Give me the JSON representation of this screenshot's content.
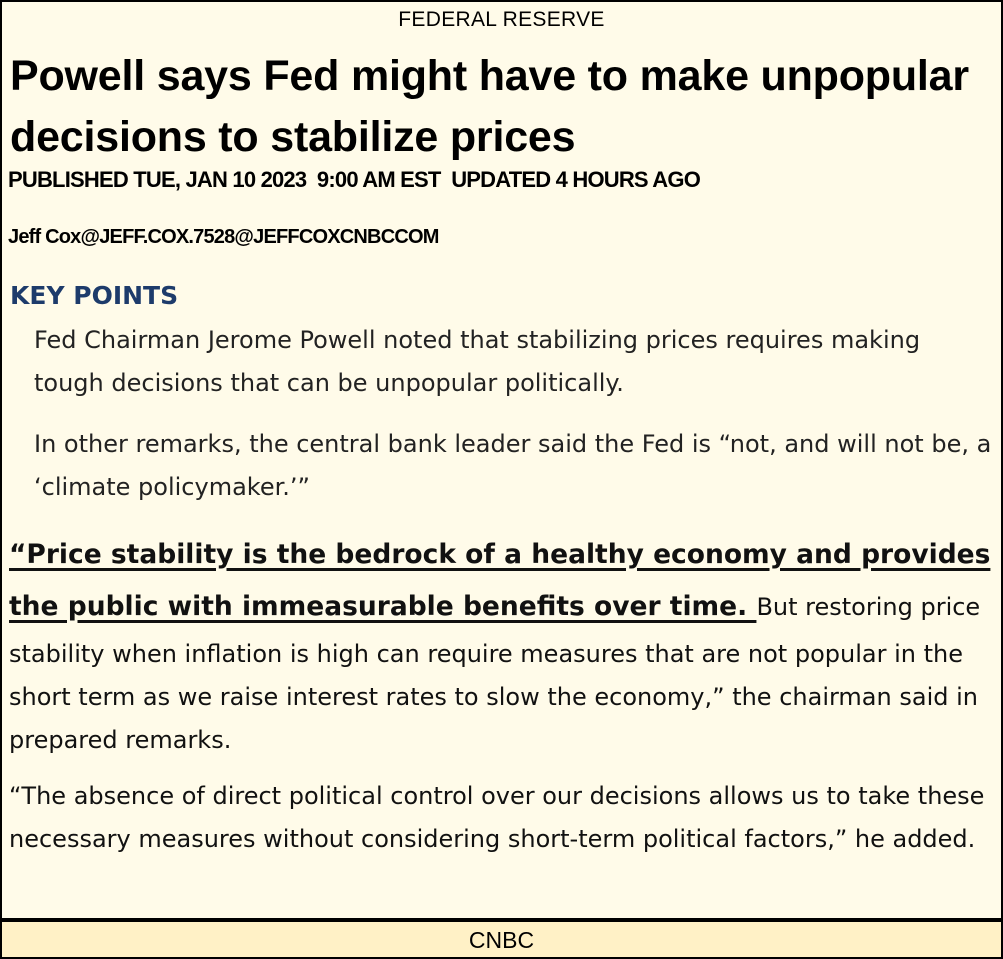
{
  "section": "FEDERAL RESERVE",
  "headline": "Powell says Fed might have to make unpopular decisions to stabilize prices",
  "published": "PUBLISHED TUE, JAN 10 2023  9:00 AM EST  UPDATED 4 HOURS AGO",
  "byline": "Jeff Cox@JEFF.COX.7528@JEFFCOXCNBCCOM",
  "key_points": {
    "label": "KEY POINTS",
    "items": [
      "Fed Chairman Jerome Powell noted that stabilizing prices requires making tough decisions that can be unpopular politically.",
      "In other remarks, the central bank leader said the Fed is “not, and will not be, a ‘climate policymaker.’”"
    ]
  },
  "body": {
    "quote_highlight": "“Price stability is the bedrock of a healthy economy and provides the public with immeasurable benefits over time. ",
    "quote_rest": "But restoring price stability when inflation is high can require measures that are not popular in the short term as we raise interest rates to slow the economy,” the chairman said in prepared remarks.",
    "paragraph_2": "“The absence of direct political control over our decisions allows us to take these necessary measures without considering short-term political factors,” he added."
  },
  "footer": "CNBC"
}
